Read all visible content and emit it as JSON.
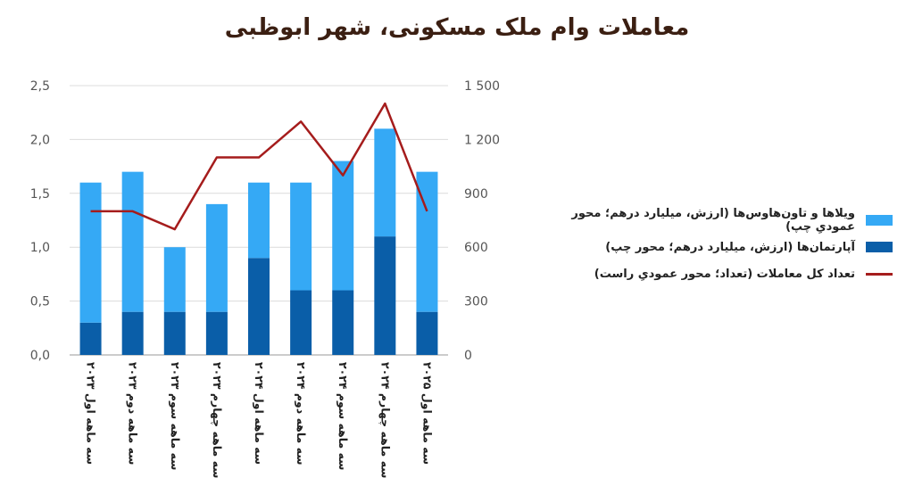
{
  "chart_data": {
    "type": "bar",
    "title": "معاملات وام ملک مسکونی، شهر ابوظبی",
    "categories": [
      "سه ماهه اول ۲۰۲۳",
      "سه ماهه دوم ۲۰۲۳",
      "سه ماهه سوم ۲۰۲۳",
      "سه ماهه چهارم ۲۰۲۳",
      "سه ماهه اول ۲۰۲۴",
      "سه ماهه دوم ۲۰۲۴",
      "سه ماهه سوم ۲۰۲۴",
      "سه ماهه چهارم ۲۰۲۴",
      "سه ماهه اول ۲۰۲۵"
    ],
    "series": [
      {
        "name": "آپارتمان‌ها (ارزش، میلیارد درهم؛ محور چپ)",
        "type": "bar-stacked",
        "axis": "left",
        "color": "#0a5ea8",
        "values": [
          0.3,
          0.4,
          0.4,
          0.4,
          0.9,
          0.6,
          0.6,
          1.1,
          0.4
        ]
      },
      {
        "name": "ویلاها و تاون‌هاوس‌ها (ارزش، میلیارد درهم؛ محور عمودیِ چپ)",
        "type": "bar-stacked",
        "axis": "left",
        "color": "#35a9f5",
        "values": [
          1.3,
          1.3,
          0.6,
          1.0,
          0.7,
          1.0,
          1.2,
          1.0,
          1.3
        ]
      },
      {
        "name": "تعداد کل معاملات (تعداد؛ محور عمودیِ راست)",
        "type": "line",
        "axis": "right",
        "color": "#a51c1c",
        "values": [
          800,
          800,
          700,
          1100,
          1100,
          1300,
          1000,
          1400,
          800
        ]
      }
    ],
    "ylim_left": [
      0,
      2.5
    ],
    "ylim_right": [
      0,
      1500
    ],
    "yticks_left": [
      "0,0",
      "0,5",
      "1,0",
      "1,5",
      "2,0",
      "2,5"
    ],
    "yticks_right": [
      "0",
      "300",
      "600",
      "900",
      "1 200",
      "1 500"
    ],
    "grid": true,
    "legend_position": "right"
  }
}
